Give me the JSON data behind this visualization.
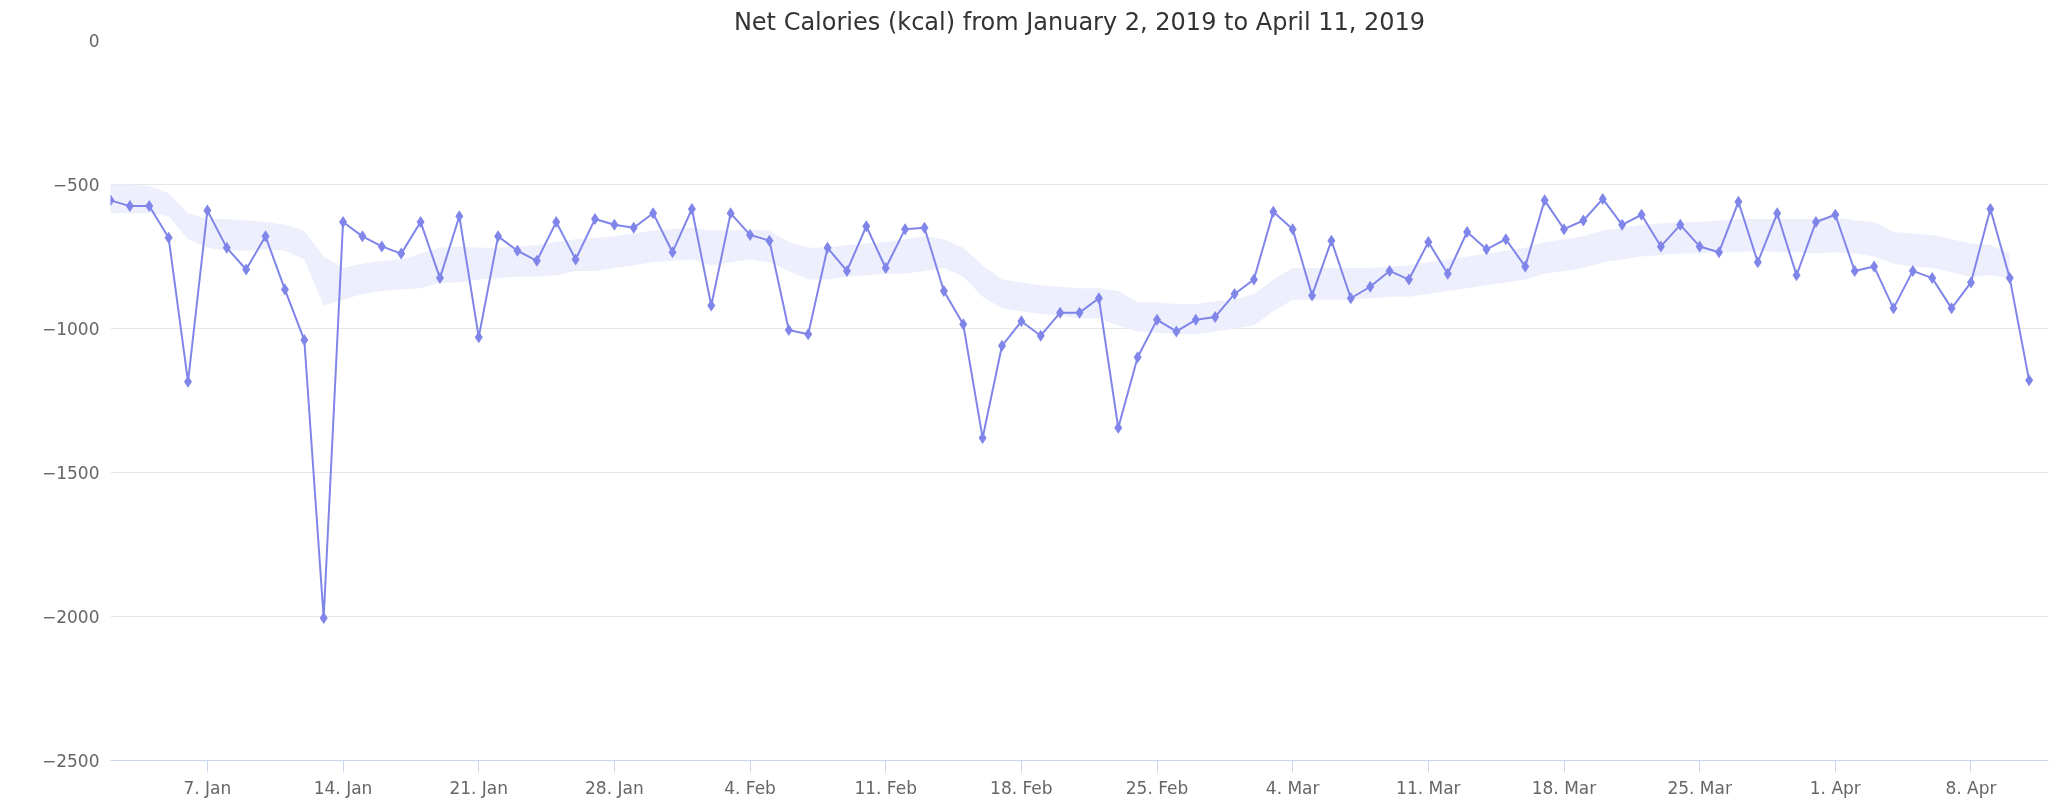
{
  "chart_data": {
    "type": "line",
    "title": "Net Calories (kcal) from January 2, 2019 to April 11, 2019",
    "x": [
      "2019-01-02",
      "2019-01-03",
      "2019-01-04",
      "2019-01-05",
      "2019-01-06",
      "2019-01-07",
      "2019-01-08",
      "2019-01-09",
      "2019-01-10",
      "2019-01-11",
      "2019-01-12",
      "2019-01-13",
      "2019-01-14",
      "2019-01-15",
      "2019-01-16",
      "2019-01-17",
      "2019-01-18",
      "2019-01-19",
      "2019-01-20",
      "2019-01-21",
      "2019-01-22",
      "2019-01-23",
      "2019-01-24",
      "2019-01-25",
      "2019-01-26",
      "2019-01-27",
      "2019-01-28",
      "2019-01-29",
      "2019-01-30",
      "2019-01-31",
      "2019-02-01",
      "2019-02-02",
      "2019-02-03",
      "2019-02-04",
      "2019-02-05",
      "2019-02-06",
      "2019-02-07",
      "2019-02-08",
      "2019-02-09",
      "2019-02-10",
      "2019-02-11",
      "2019-02-12",
      "2019-02-13",
      "2019-02-14",
      "2019-02-15",
      "2019-02-16",
      "2019-02-17",
      "2019-02-18",
      "2019-02-19",
      "2019-02-20",
      "2019-02-21",
      "2019-02-22",
      "2019-02-23",
      "2019-02-24",
      "2019-02-25",
      "2019-02-26",
      "2019-02-27",
      "2019-02-28",
      "2019-03-01",
      "2019-03-02",
      "2019-03-03",
      "2019-03-04",
      "2019-03-05",
      "2019-03-06",
      "2019-03-07",
      "2019-03-08",
      "2019-03-09",
      "2019-03-10",
      "2019-03-11",
      "2019-03-12",
      "2019-03-13",
      "2019-03-14",
      "2019-03-15",
      "2019-03-16",
      "2019-03-17",
      "2019-03-18",
      "2019-03-19",
      "2019-03-20",
      "2019-03-21",
      "2019-03-22",
      "2019-03-23",
      "2019-03-24",
      "2019-03-25",
      "2019-03-26",
      "2019-03-27",
      "2019-03-28",
      "2019-03-29",
      "2019-03-30",
      "2019-03-31",
      "2019-04-01",
      "2019-04-02",
      "2019-04-03",
      "2019-04-04",
      "2019-04-05",
      "2019-04-06",
      "2019-04-07",
      "2019-04-08",
      "2019-04-09",
      "2019-04-10",
      "2019-04-11"
    ],
    "series": [
      {
        "color": "#8085e9",
        "values": [
          -555,
          -575,
          -575,
          -685,
          -1185,
          -590,
          -720,
          -795,
          -680,
          -865,
          -1040,
          -2005,
          -630,
          -680,
          -715,
          -740,
          -630,
          -825,
          -610,
          -1030,
          -680,
          -730,
          -765,
          -630,
          -760,
          -620,
          -640,
          -650,
          -600,
          -735,
          -585,
          -920,
          -600,
          -675,
          -695,
          -1005,
          -1020,
          -720,
          -800,
          -645,
          -790,
          -655,
          -650,
          -870,
          -985,
          -1380,
          -1060,
          -975,
          -1025,
          -945,
          -945,
          -895,
          -1345,
          -1100,
          -970,
          -1010,
          -970,
          -960,
          -880,
          -830,
          -595,
          -655,
          -885,
          -695,
          -895,
          -855,
          -800,
          -830,
          -700,
          -810,
          -665,
          -725,
          -690,
          -785,
          -555,
          -655,
          -625,
          -550,
          -640,
          -605,
          -715,
          -640,
          -715,
          -735,
          -560,
          -770,
          -600,
          -815,
          -630,
          -605,
          -800,
          -785,
          -930,
          -800,
          -825,
          -930,
          -840,
          -585,
          -825,
          -1180
        ],
        "upper": [
          -500,
          -500,
          -505,
          -530,
          -600,
          -620,
          -620,
          -625,
          -630,
          -640,
          -660,
          -750,
          -790,
          -775,
          -765,
          -760,
          -740,
          -720,
          -715,
          -720,
          -720,
          -715,
          -710,
          -700,
          -690,
          -685,
          -680,
          -670,
          -660,
          -655,
          -650,
          -660,
          -660,
          -655,
          -660,
          -700,
          -720,
          -720,
          -710,
          -705,
          -700,
          -690,
          -680,
          -690,
          -720,
          -780,
          -830,
          -840,
          -850,
          -855,
          -860,
          -860,
          -870,
          -910,
          -910,
          -915,
          -915,
          -905,
          -900,
          -880,
          -830,
          -790,
          -790,
          -790,
          -790,
          -790,
          -785,
          -780,
          -770,
          -760,
          -750,
          -740,
          -730,
          -720,
          -700,
          -690,
          -680,
          -660,
          -650,
          -640,
          -635,
          -630,
          -630,
          -625,
          -620,
          -620,
          -620,
          -620,
          -620,
          -615,
          -625,
          -630,
          -665,
          -670,
          -675,
          -690,
          -705,
          -710,
          -740,
          null
        ],
        "lower": [
          -600,
          -600,
          -600,
          -610,
          -690,
          -720,
          -730,
          -730,
          -725,
          -730,
          -760,
          -920,
          -900,
          -880,
          -870,
          -865,
          -860,
          -840,
          -840,
          -830,
          -825,
          -820,
          -820,
          -815,
          -800,
          -800,
          -790,
          -780,
          -770,
          -765,
          -760,
          -780,
          -770,
          -760,
          -770,
          -800,
          -830,
          -830,
          -820,
          -815,
          -810,
          -810,
          -800,
          -790,
          -820,
          -890,
          -930,
          -940,
          -950,
          -955,
          -965,
          -965,
          -990,
          -1010,
          -1015,
          -1020,
          -1020,
          -1010,
          -1000,
          -990,
          -940,
          -900,
          -900,
          -900,
          -900,
          -895,
          -890,
          -890,
          -880,
          -870,
          -860,
          -850,
          -840,
          -830,
          -810,
          -800,
          -790,
          -770,
          -760,
          -750,
          -745,
          -740,
          -740,
          -735,
          -735,
          -730,
          -735,
          -735,
          -740,
          -735,
          -740,
          -750,
          -775,
          -785,
          -790,
          -805,
          -820,
          -815,
          -825,
          null
        ]
      }
    ],
    "xlim": [
      "2019-01-02",
      "2019-04-12"
    ],
    "xticks": [
      {
        "value": "2019-01-07",
        "label": "7. Jan"
      },
      {
        "value": "2019-01-14",
        "label": "14. Jan"
      },
      {
        "value": "2019-01-21",
        "label": "21. Jan"
      },
      {
        "value": "2019-01-28",
        "label": "28. Jan"
      },
      {
        "value": "2019-02-04",
        "label": "4. Feb"
      },
      {
        "value": "2019-02-11",
        "label": "11. Feb"
      },
      {
        "value": "2019-02-18",
        "label": "18. Feb"
      },
      {
        "value": "2019-02-25",
        "label": "25. Feb"
      },
      {
        "value": "2019-03-04",
        "label": "4. Mar"
      },
      {
        "value": "2019-03-11",
        "label": "11. Mar"
      },
      {
        "value": "2019-03-18",
        "label": "18. Mar"
      },
      {
        "value": "2019-03-25",
        "label": "25. Mar"
      },
      {
        "value": "2019-04-01",
        "label": "1. Apr"
      },
      {
        "value": "2019-04-08",
        "label": "8. Apr"
      }
    ],
    "ylim": [
      -2500,
      0
    ],
    "yticks": [
      -2500,
      -2000,
      -1500,
      -1000,
      -500,
      0
    ],
    "grid": "y",
    "marker": "diamond",
    "line_style": "solid"
  }
}
